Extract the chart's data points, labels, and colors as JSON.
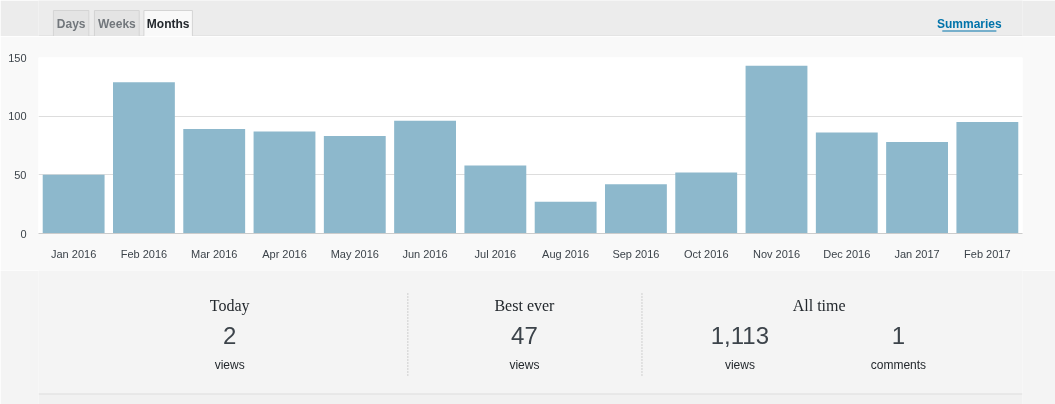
{
  "chart_data": [
    {
      "type": "bar",
      "categories": [
        "Jan 2016",
        "Feb 2016",
        "Mar 2016",
        "Apr 2016",
        "May 2016",
        "Jun 2016",
        "Jul 2016",
        "Aug 2016",
        "Sep 2016",
        "Oct 2016",
        "Nov 2016",
        "Dec 2016",
        "Jan 2017",
        "Feb 2017"
      ],
      "values": [
        50,
        129,
        89,
        87,
        83,
        96,
        58,
        27,
        42,
        52,
        143,
        86,
        78,
        95
      ],
      "color": "#8db8cc",
      "ylim": [
        0,
        150
      ],
      "yticks": [
        0,
        50,
        100,
        150
      ],
      "grid": "y",
      "annotations": [
        "Days",
        "Weeks",
        "Months",
        "Summaries"
      ]
    },
    {
      "type": "other",
      "annotations": [
        "Today",
        "2",
        "views",
        "Best ever",
        "47",
        "views",
        "All time",
        "1,113",
        "views",
        "1",
        "comments"
      ]
    }
  ]
}
